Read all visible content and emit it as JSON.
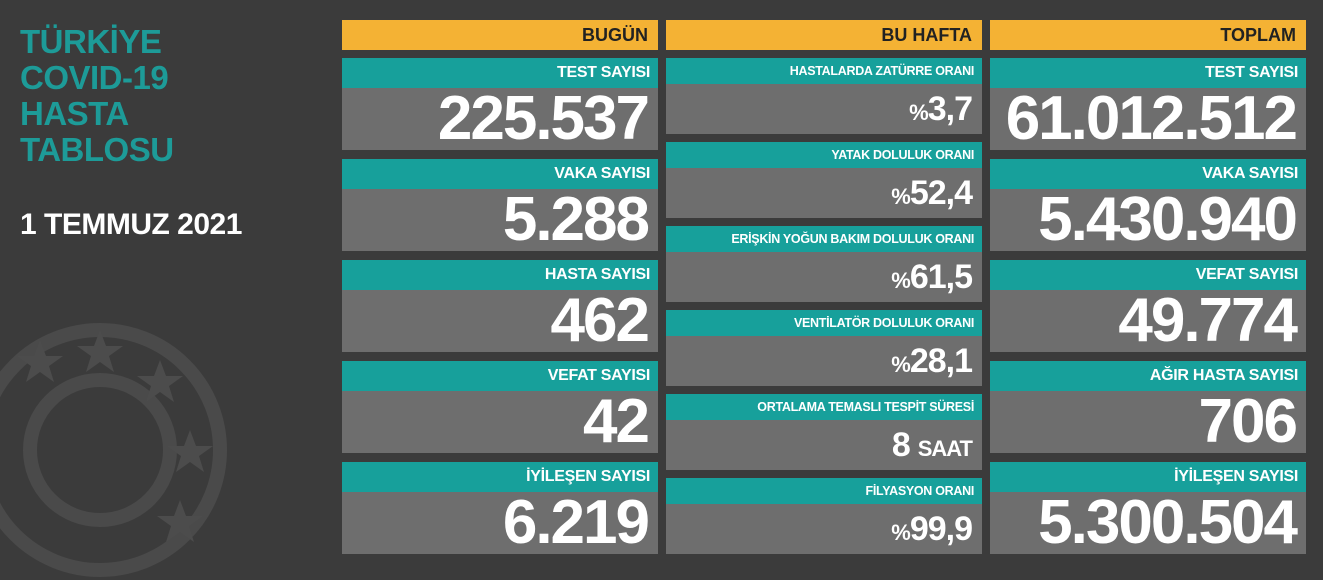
{
  "title": "TÜRKİYE COVID-19 HASTA TABLOSU",
  "date": "1 TEMMUZ 2021",
  "columns": [
    {
      "header": "BUGÜN",
      "items": [
        {
          "label": "TEST SAYISI",
          "value": "225.537"
        },
        {
          "label": "VAKA SAYISI",
          "value": "5.288"
        },
        {
          "label": "HASTA SAYISI",
          "value": "462"
        },
        {
          "label": "VEFAT SAYISI",
          "value": "42"
        },
        {
          "label": "İYİLEŞEN SAYISI",
          "value": "6.219"
        }
      ]
    },
    {
      "header": "BU HAFTA",
      "items": [
        {
          "label": "HASTALARDA ZATÜRRE ORANI",
          "prefix": "%",
          "value": "3,7"
        },
        {
          "label": "YATAK DOLULUK ORANI",
          "prefix": "%",
          "value": "52,4"
        },
        {
          "label": "ERİŞKİN YOĞUN BAKIM DOLULUK ORANI",
          "prefix": "%",
          "value": "61,5"
        },
        {
          "label": "VENTİLATÖR DOLULUK ORANI",
          "prefix": "%",
          "value": "28,1"
        },
        {
          "label": "ORTALAMA TEMASLI TESPİT SÜRESİ",
          "value": "8",
          "suffix": "SAAT"
        },
        {
          "label": "FİLYASYON ORANI",
          "prefix": "%",
          "value": "99,9"
        }
      ]
    },
    {
      "header": "TOPLAM",
      "items": [
        {
          "label": "TEST SAYISI",
          "value": "61.012.512"
        },
        {
          "label": "VAKA SAYISI",
          "value": "5.430.940"
        },
        {
          "label": "VEFAT SAYISI",
          "value": "49.774"
        },
        {
          "label": "AĞIR HASTA SAYISI",
          "value": "706"
        },
        {
          "label": "İYİLEŞEN SAYISI",
          "value": "5.300.504"
        }
      ]
    }
  ]
}
